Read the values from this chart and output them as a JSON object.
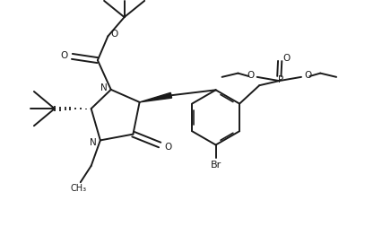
{
  "bg_color": "#ffffff",
  "line_color": "#1a1a1a",
  "line_width": 1.4,
  "figsize": [
    4.26,
    2.72
  ],
  "dpi": 100,
  "xlim": [
    0,
    10
  ],
  "ylim": [
    0,
    6.4
  ]
}
